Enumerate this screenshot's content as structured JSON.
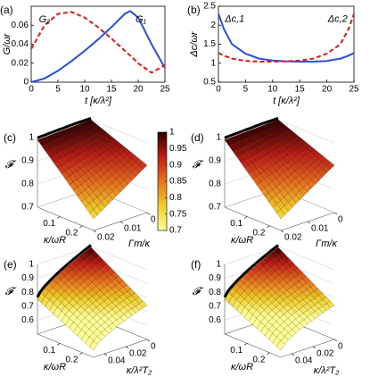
{
  "chart_data": [
    {
      "type": "line",
      "label": "(a)",
      "xlabel": "t [κ/λ²]",
      "ylabel": "G/ωr",
      "x": [
        0,
        2.5,
        5,
        7.5,
        10,
        12.5,
        15,
        17.5,
        18.5,
        20,
        22.5,
        25
      ],
      "xlim": [
        0,
        25
      ],
      "xticks": [
        0,
        5,
        10,
        15,
        20,
        25
      ],
      "ylim": [
        0,
        0.08
      ],
      "yticks": [
        0,
        0.02,
        0.04,
        0.06
      ],
      "series": [
        {
          "name": "G₁",
          "color": "#2a4fe0",
          "dash": false,
          "values": [
            0,
            0.004,
            0.012,
            0.022,
            0.033,
            0.045,
            0.058,
            0.072,
            0.075,
            0.068,
            0.04,
            0.015
          ]
        },
        {
          "name": "G₂",
          "color": "#e01818",
          "dash": true,
          "values": [
            0.035,
            0.06,
            0.072,
            0.074,
            0.068,
            0.058,
            0.046,
            0.033,
            0.028,
            0.02,
            0.01,
            0.018
          ]
        }
      ]
    },
    {
      "type": "line",
      "label": "(b)",
      "xlabel": "t [κ/λ²]",
      "ylabel": "Δc/ωr",
      "x": [
        0,
        1,
        2.5,
        5,
        7.5,
        10,
        12.5,
        15,
        17.5,
        20,
        22.5,
        24,
        25
      ],
      "xlim": [
        0,
        25
      ],
      "xticks": [
        0,
        5,
        10,
        15,
        20,
        25
      ],
      "ylim": [
        0.5,
        2.5
      ],
      "yticks": [
        0.5,
        1,
        1.5,
        2,
        2.5
      ],
      "series": [
        {
          "name": "Δc,1",
          "color": "#2a4fe0",
          "dash": false,
          "values": [
            2.3,
            1.9,
            1.5,
            1.25,
            1.12,
            1.07,
            1.05,
            1.04,
            1.04,
            1.06,
            1.12,
            1.2,
            1.27
          ]
        },
        {
          "name": "Δc,2",
          "color": "#e01818",
          "dash": true,
          "values": [
            1.27,
            1.2,
            1.12,
            1.06,
            1.04,
            1.04,
            1.05,
            1.07,
            1.12,
            1.25,
            1.5,
            1.9,
            2.3
          ]
        }
      ]
    },
    {
      "type": "surface3d",
      "label": "(c)",
      "xlabel": "κ/ωR",
      "ylabel": "Γm/κ",
      "zlabel": "𝓕",
      "xlim": [
        0,
        0.25
      ],
      "xticks": [
        0.1,
        0.2
      ],
      "ylim": [
        0.02,
        0
      ],
      "yticks": [
        0,
        0.01,
        0.02
      ],
      "zlim": [
        0.7,
        1
      ],
      "zticks": [
        0.7,
        0.8,
        0.9,
        1
      ]
    },
    {
      "type": "colorbar",
      "lim": [
        0.7,
        1
      ],
      "ticks": [
        0.7,
        0.75,
        0.8,
        0.85,
        0.9,
        0.95,
        1
      ]
    },
    {
      "type": "surface3d",
      "label": "(d)",
      "xlabel": "κ/ωR",
      "ylabel": "Γm/κ",
      "zlabel": "𝓕",
      "xlim": [
        0,
        0.25
      ],
      "xticks": [
        0.1,
        0.2
      ],
      "ylim": [
        0.02,
        0
      ],
      "yticks": [
        0,
        0.01,
        0.02
      ],
      "zlim": [
        0.7,
        1
      ],
      "zticks": [
        0.7,
        0.8,
        0.9,
        1
      ]
    },
    {
      "type": "surface3d",
      "label": "(e)",
      "xlabel": "κ/ωR",
      "ylabel": "κ/λ²T₂",
      "zlabel": "𝓕",
      "xlim": [
        0,
        0.25
      ],
      "xticks": [
        0.1,
        0.2
      ],
      "ylim": [
        0.05,
        0
      ],
      "yticks": [
        0,
        0.02,
        0.04
      ],
      "zlim": [
        0.5,
        1
      ],
      "zticks": [
        0.6,
        0.7,
        0.8,
        0.9,
        1
      ]
    },
    {
      "type": "surface3d",
      "label": "(f)",
      "xlabel": "κ/ωR",
      "ylabel": "κ/λ²T₂",
      "zlabel": "𝓕",
      "xlim": [
        0,
        0.25
      ],
      "xticks": [
        0.1,
        0.2
      ],
      "ylim": [
        0.05,
        0
      ],
      "yticks": [
        0,
        0.02,
        0.04
      ],
      "zlim": [
        0.5,
        1
      ],
      "zticks": [
        0.6,
        0.7,
        0.8,
        0.9,
        1
      ]
    }
  ]
}
